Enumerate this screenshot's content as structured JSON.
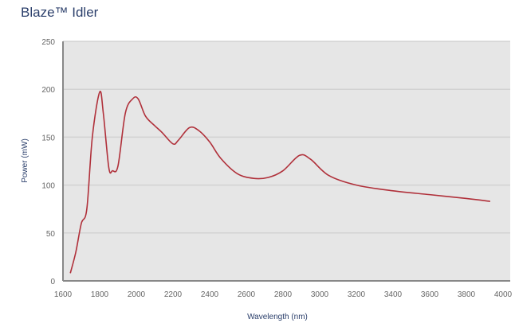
{
  "chart_data": {
    "type": "line",
    "title": "Blaze™ Idler",
    "xlabel": "Wavelength (nm)",
    "ylabel": "Power (mW)",
    "xlim": [
      1600,
      4000
    ],
    "ylim": [
      0,
      250
    ],
    "xticks": [
      1600,
      1800,
      2000,
      2200,
      2400,
      2600,
      2800,
      3000,
      3200,
      3400,
      3600,
      3800,
      4000
    ],
    "yticks": [
      0,
      50,
      100,
      150,
      200,
      250
    ],
    "grid": "horizontal",
    "line_color": "#b0303a",
    "series": [
      {
        "name": "Blaze Idler",
        "x": [
          1640,
          1670,
          1700,
          1730,
          1760,
          1800,
          1820,
          1850,
          1870,
          1900,
          1940,
          1980,
          2010,
          2050,
          2100,
          2140,
          2200,
          2230,
          2290,
          2340,
          2400,
          2460,
          2550,
          2640,
          2720,
          2800,
          2890,
          2950,
          3050,
          3200,
          3400,
          3600,
          3800,
          3930
        ],
        "y": [
          8,
          30,
          60,
          75,
          150,
          197,
          175,
          118,
          115,
          120,
          175,
          190,
          190,
          172,
          162,
          155,
          143,
          147,
          160,
          157,
          145,
          128,
          112,
          107,
          108,
          115,
          131,
          127,
          110,
          100,
          94,
          90,
          86,
          83
        ]
      }
    ]
  }
}
